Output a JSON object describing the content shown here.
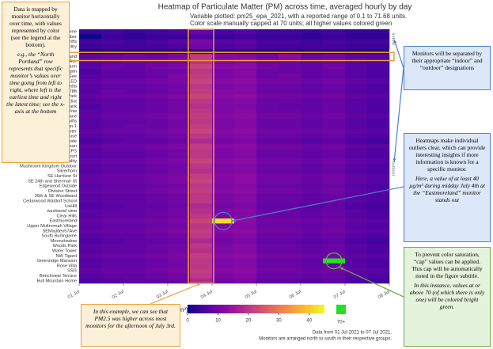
{
  "chart_data": {
    "type": "heatmap",
    "title": "Heatmap of Particulate Matter (PM) across time, averaged hourly by day",
    "subtitle": [
      "Variable plotted: pm25_epa_2021, with a reported range of 0.1 to 71.68 units.",
      "Color scale manually capped at 70 units; all higher values colored green"
    ],
    "x": [
      0,
      12,
      24,
      36,
      48,
      60,
      72,
      84,
      96,
      108,
      120,
      132,
      144,
      156
    ],
    "xlim": [
      0,
      168
    ],
    "xticks": [
      {
        "value": 0,
        "label": "01 Jul"
      },
      {
        "value": 24,
        "label": "02 Jul"
      },
      {
        "value": 48,
        "label": "03 Jul"
      },
      {
        "value": 72,
        "label": "04 Jul"
      },
      {
        "value": 96,
        "label": "05 Jul"
      },
      {
        "value": 120,
        "label": "06 Jul"
      },
      {
        "value": 144,
        "label": "07 Jul"
      },
      {
        "value": 168,
        "label": "08 Jul"
      }
    ],
    "groups": [
      {
        "name": "indoor",
        "rows": [
          "Home",
          "Combustion Test Chamber",
          "Mckenzie Lofts",
          "Colby"
        ],
        "z": [
          [
            4,
            5,
            4,
            5,
            6,
            9,
            6,
            7,
            5,
            5,
            4,
            5,
            4,
            4
          ],
          [
            0.1,
            4,
            3,
            4,
            4,
            6,
            4,
            5,
            4,
            4,
            3,
            4,
            3,
            3
          ],
          [
            5,
            6,
            5,
            6,
            7,
            11,
            7,
            8,
            6,
            6,
            5,
            6,
            5,
            5
          ],
          [
            4,
            5,
            5,
            5,
            6,
            10,
            6,
            7,
            5,
            5,
            5,
            5,
            4,
            4
          ]
        ]
      },
      {
        "name": "outdoor",
        "rows": [
          "North Portland",
          "Bridge Ave",
          "Carpenter Farm",
          "Morgan",
          "NCA BeeGee",
          "SCROBBLED",
          "Concordia",
          "Langworthy Terrace 878ft",
          "PSU STAR Lab Rose City Park",
          "East Eliot",
          "SharkTank",
          "GH Tillamook Row",
          "Tudor Lane",
          "NCA Saver Swifts",
          "Chapman-1",
          "Moda Center",
          "Carpenter House",
          "Hillside",
          "NE Glisan",
          "NSA CPS",
          "Delta Court",
          "Mt Tabor Air Quality",
          "Mushroom Kingdom Outdoor",
          "Silverhorn",
          "SE Harrison St",
          "SE 24th and Sherman St",
          "Edgewood Outside",
          "Division Street",
          "36th & SE Woodward",
          "Cedarwood Waldorf School",
          "LisHill",
          "westwood view",
          "Clear Hills",
          "Eastmoreland",
          "Upper Multnomah Village",
          "SEMadden57Ave",
          "South Burlingame",
          "Moonshadow",
          "Woods Park",
          "Water Tower",
          "NW Tigard",
          "Greenridge Mansion",
          "Rose Villa",
          "SSG",
          "Benchview Terrace",
          "Bull Mountain Home"
        ],
        "z": [
          [
            8,
            9,
            10,
            9,
            11,
            21,
            12,
            12,
            10,
            13,
            9,
            10,
            8,
            7
          ],
          [
            7,
            8,
            9,
            9,
            10,
            19,
            11,
            12,
            9,
            9,
            8,
            9,
            7,
            6
          ],
          [
            7,
            9,
            8,
            10,
            11,
            22,
            12,
            13,
            10,
            9,
            8,
            10,
            7,
            6
          ],
          [
            6,
            8,
            8,
            9,
            10,
            20,
            11,
            12,
            9,
            9,
            8,
            9,
            7,
            6
          ],
          [
            7,
            8,
            8,
            9,
            11,
            21,
            11,
            12,
            9,
            10,
            8,
            9,
            7,
            6
          ],
          [
            8,
            9,
            9,
            10,
            11,
            22,
            12,
            13,
            10,
            10,
            9,
            10,
            8,
            7
          ],
          [
            7,
            8,
            8,
            9,
            10,
            20,
            11,
            12,
            9,
            9,
            8,
            9,
            7,
            6
          ],
          [
            7,
            9,
            8,
            9,
            10,
            21,
            12,
            12,
            9,
            9,
            8,
            9,
            7,
            6
          ],
          [
            8,
            9,
            9,
            10,
            11,
            22,
            12,
            13,
            10,
            10,
            9,
            10,
            8,
            7
          ],
          [
            7,
            8,
            8,
            9,
            10,
            20,
            11,
            12,
            9,
            9,
            8,
            9,
            7,
            6
          ],
          [
            6,
            8,
            8,
            9,
            10,
            19,
            11,
            11,
            9,
            8,
            8,
            9,
            7,
            6
          ],
          [
            7,
            8,
            8,
            9,
            10,
            20,
            11,
            12,
            9,
            9,
            8,
            9,
            7,
            6
          ],
          [
            8,
            9,
            9,
            10,
            11,
            21,
            12,
            13,
            10,
            10,
            9,
            10,
            8,
            7
          ],
          [
            7,
            8,
            8,
            9,
            10,
            20,
            11,
            12,
            9,
            9,
            8,
            9,
            7,
            6
          ],
          [
            7,
            8,
            9,
            9,
            10,
            21,
            11,
            12,
            9,
            9,
            8,
            9,
            7,
            6
          ],
          [
            8,
            9,
            9,
            10,
            11,
            22,
            12,
            13,
            10,
            10,
            9,
            10,
            8,
            7
          ],
          [
            7,
            8,
            8,
            9,
            10,
            20,
            11,
            12,
            9,
            9,
            8,
            9,
            7,
            6
          ],
          [
            6,
            7,
            8,
            8,
            9,
            18,
            10,
            11,
            8,
            8,
            7,
            8,
            6,
            5
          ],
          [
            8,
            9,
            9,
            10,
            11,
            21,
            12,
            13,
            10,
            10,
            9,
            10,
            8,
            7
          ],
          [
            7,
            8,
            8,
            9,
            10,
            20,
            11,
            12,
            9,
            9,
            8,
            9,
            7,
            6
          ],
          [
            7,
            8,
            8,
            9,
            10,
            20,
            11,
            12,
            9,
            9,
            8,
            9,
            7,
            6
          ],
          [
            8,
            9,
            9,
            10,
            11,
            22,
            12,
            13,
            10,
            10,
            9,
            10,
            8,
            7
          ],
          [
            7,
            8,
            8,
            9,
            10,
            20,
            11,
            12,
            9,
            9,
            8,
            9,
            7,
            6
          ],
          [
            7,
            8,
            8,
            9,
            10,
            19,
            11,
            12,
            9,
            9,
            8,
            9,
            7,
            6
          ],
          [
            8,
            9,
            9,
            10,
            11,
            21,
            12,
            13,
            10,
            10,
            9,
            10,
            8,
            7
          ],
          [
            8,
            9,
            9,
            10,
            11,
            22,
            12,
            13,
            10,
            10,
            9,
            10,
            8,
            7
          ],
          [
            7,
            8,
            8,
            9,
            10,
            20,
            11,
            12,
            9,
            9,
            8,
            9,
            7,
            6
          ],
          [
            8,
            9,
            9,
            10,
            11,
            21,
            12,
            13,
            10,
            10,
            9,
            10,
            8,
            7
          ],
          [
            7,
            8,
            8,
            9,
            10,
            20,
            11,
            12,
            9,
            9,
            8,
            9,
            7,
            6
          ],
          [
            7,
            8,
            8,
            9,
            10,
            20,
            11,
            12,
            9,
            9,
            8,
            9,
            7,
            6
          ],
          [
            6,
            7,
            8,
            8,
            9,
            18,
            10,
            11,
            8,
            8,
            7,
            8,
            6,
            5
          ],
          [
            7,
            8,
            8,
            9,
            10,
            19,
            11,
            12,
            9,
            9,
            8,
            9,
            7,
            6
          ],
          [
            7,
            8,
            8,
            9,
            10,
            20,
            11,
            12,
            9,
            9,
            8,
            9,
            7,
            6
          ],
          [
            8,
            9,
            9,
            10,
            11,
            22,
            42,
            13,
            10,
            10,
            9,
            10,
            8,
            7
          ],
          [
            7,
            8,
            8,
            9,
            10,
            20,
            11,
            12,
            9,
            9,
            8,
            9,
            7,
            6
          ],
          [
            8,
            9,
            9,
            10,
            11,
            21,
            12,
            13,
            10,
            10,
            9,
            10,
            8,
            7
          ],
          [
            7,
            8,
            8,
            9,
            10,
            20,
            11,
            12,
            9,
            9,
            8,
            9,
            7,
            6
          ],
          [
            6,
            7,
            8,
            8,
            9,
            18,
            10,
            11,
            8,
            8,
            7,
            8,
            6,
            5
          ],
          [
            7,
            8,
            8,
            9,
            10,
            20,
            11,
            12,
            9,
            9,
            8,
            9,
            7,
            6
          ],
          [
            7,
            8,
            8,
            9,
            10,
            19,
            11,
            12,
            9,
            9,
            8,
            9,
            7,
            6
          ],
          [
            8,
            9,
            9,
            10,
            11,
            21,
            12,
            13,
            10,
            10,
            9,
            10,
            8,
            7
          ],
          [
            7,
            8,
            8,
            9,
            10,
            20,
            11,
            12,
            9,
            9,
            8,
            71.68,
            7,
            6
          ],
          [
            7,
            8,
            8,
            9,
            10,
            20,
            11,
            12,
            9,
            9,
            8,
            9,
            7,
            6
          ],
          [
            8,
            9,
            9,
            10,
            11,
            21,
            12,
            13,
            10,
            10,
            9,
            10,
            8,
            7
          ],
          [
            7,
            8,
            8,
            9,
            10,
            20,
            11,
            12,
            9,
            9,
            8,
            9,
            7,
            6
          ],
          [
            6,
            7,
            8,
            8,
            9,
            18,
            10,
            11,
            8,
            8,
            7,
            8,
            6,
            5
          ]
        ]
      }
    ],
    "colorscale": [
      "#0d0887",
      "#5302a3",
      "#8b0aa5",
      "#b83289",
      "#db5c68",
      "#f48849",
      "#febd2a",
      "#f0f921"
    ],
    "colorbar_label": "PM2.5 (µg/m³)",
    "colorbar_lim": [
      0,
      45
    ],
    "colorbar_ticks": [
      0,
      10,
      20,
      30,
      40
    ],
    "cap": 70,
    "cap_label": "70+",
    "cap_color": "#22e022",
    "footer": [
      "Data from 01 Jul 2021 to 07 Jul 2021.",
      "Monitors are arranged north to south in their respective groups."
    ],
    "annotations": [
      {
        "paragraphs": [
          {
            "text": "Data is mapped by monitor horizontally over time, with values represented by color (see the legend at the bottom).",
            "italic": false
          },
          {
            "text": "e.g., the “North Portland” row represents that specific monitor’s values over time going from left to right, where left is the earliest time and right the latest time; see the x-axis at the bottom",
            "italic": true
          }
        ]
      },
      {
        "paragraphs": [
          {
            "text": "Monitors will be separated by their appropriate “indoor” and “outdoor” designations",
            "italic": false
          }
        ]
      },
      {
        "paragraphs": [
          {
            "text": "Heatmaps make individual outliers clear, which can provide interesting insights if more information is known for a specific monitor.",
            "italic": false
          },
          {
            "text": "Here, a value of at least 40 µg/m³ during midday July 4th at the “Eastmoreland” monitor stands out",
            "italic": true
          }
        ]
      },
      {
        "paragraphs": [
          {
            "text": "In this example, we can see that PM2.5 was higher across most monitors for the afternoon of July 3rd.",
            "italic": true
          }
        ]
      },
      {
        "paragraphs": [
          {
            "text": "To prevent color saturation, “cap” values can be applied. This cap will be automatically noted in the figure subtitle.",
            "italic": false
          },
          {
            "text": "In this instance, values at or above 70 (of which there is only one) will be colored bright green.",
            "italic": true
          }
        ]
      }
    ]
  }
}
